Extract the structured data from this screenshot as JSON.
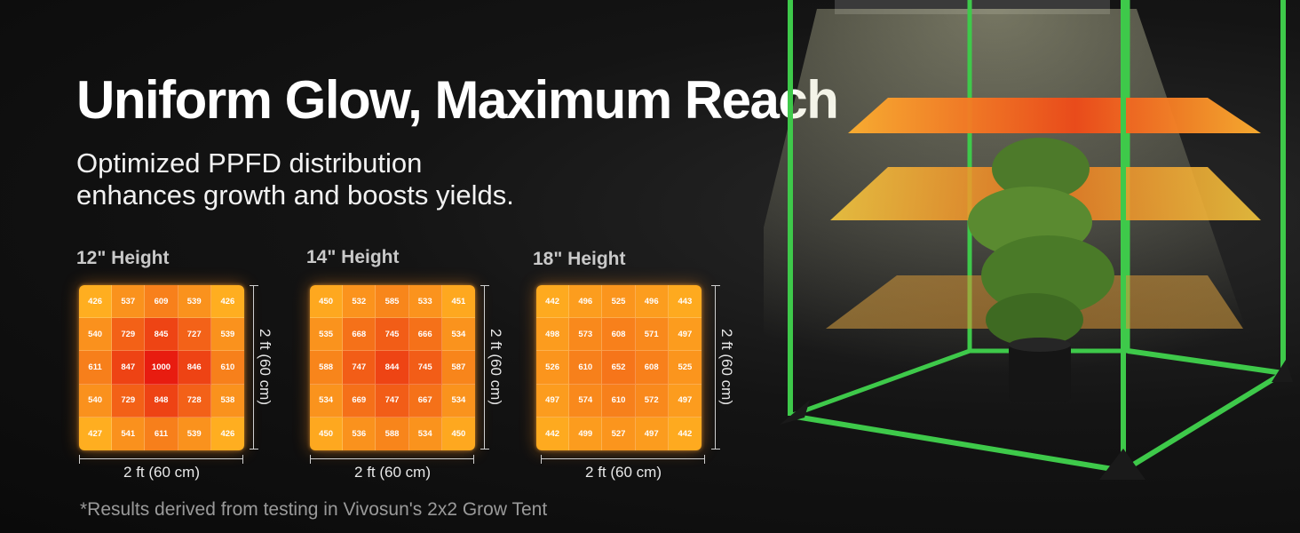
{
  "headline": "Uniform Glow, Maximum Reach",
  "subheadline": {
    "line1": "Optimized PPFD distribution",
    "line2": "enhances growth and boosts yields."
  },
  "panels": [
    {
      "label": "12\" Height",
      "grid": [
        [
          426,
          537,
          609,
          539,
          426
        ],
        [
          540,
          729,
          845,
          727,
          539
        ],
        [
          611,
          847,
          1000,
          846,
          610
        ],
        [
          540,
          729,
          848,
          728,
          538
        ],
        [
          427,
          541,
          611,
          539,
          426
        ]
      ],
      "width_label": "2 ft (60 cm)",
      "height_label": "2 ft (60 cm)"
    },
    {
      "label": "14\" Height",
      "grid": [
        [
          450,
          532,
          585,
          533,
          451
        ],
        [
          535,
          668,
          745,
          666,
          534
        ],
        [
          588,
          747,
          844,
          745,
          587
        ],
        [
          534,
          669,
          747,
          667,
          534
        ],
        [
          450,
          536,
          588,
          534,
          450
        ]
      ],
      "width_label": "2 ft (60 cm)",
      "height_label": "2 ft (60 cm)"
    },
    {
      "label": "18\" Height",
      "grid": [
        [
          442,
          496,
          525,
          496,
          443
        ],
        [
          498,
          573,
          608,
          571,
          497
        ],
        [
          526,
          610,
          652,
          608,
          525
        ],
        [
          497,
          574,
          610,
          572,
          497
        ],
        [
          442,
          499,
          527,
          497,
          442
        ]
      ],
      "width_label": "2 ft (60 cm)",
      "height_label": "2 ft (60 cm)"
    }
  ],
  "footnote": "*Results derived from testing in Vivosun's 2x2 Grow Tent",
  "colors": {
    "background": "#111111",
    "tent_frame": "#3ec94a",
    "heat_low": "#ffb020",
    "heat_high": "#e81c10"
  }
}
